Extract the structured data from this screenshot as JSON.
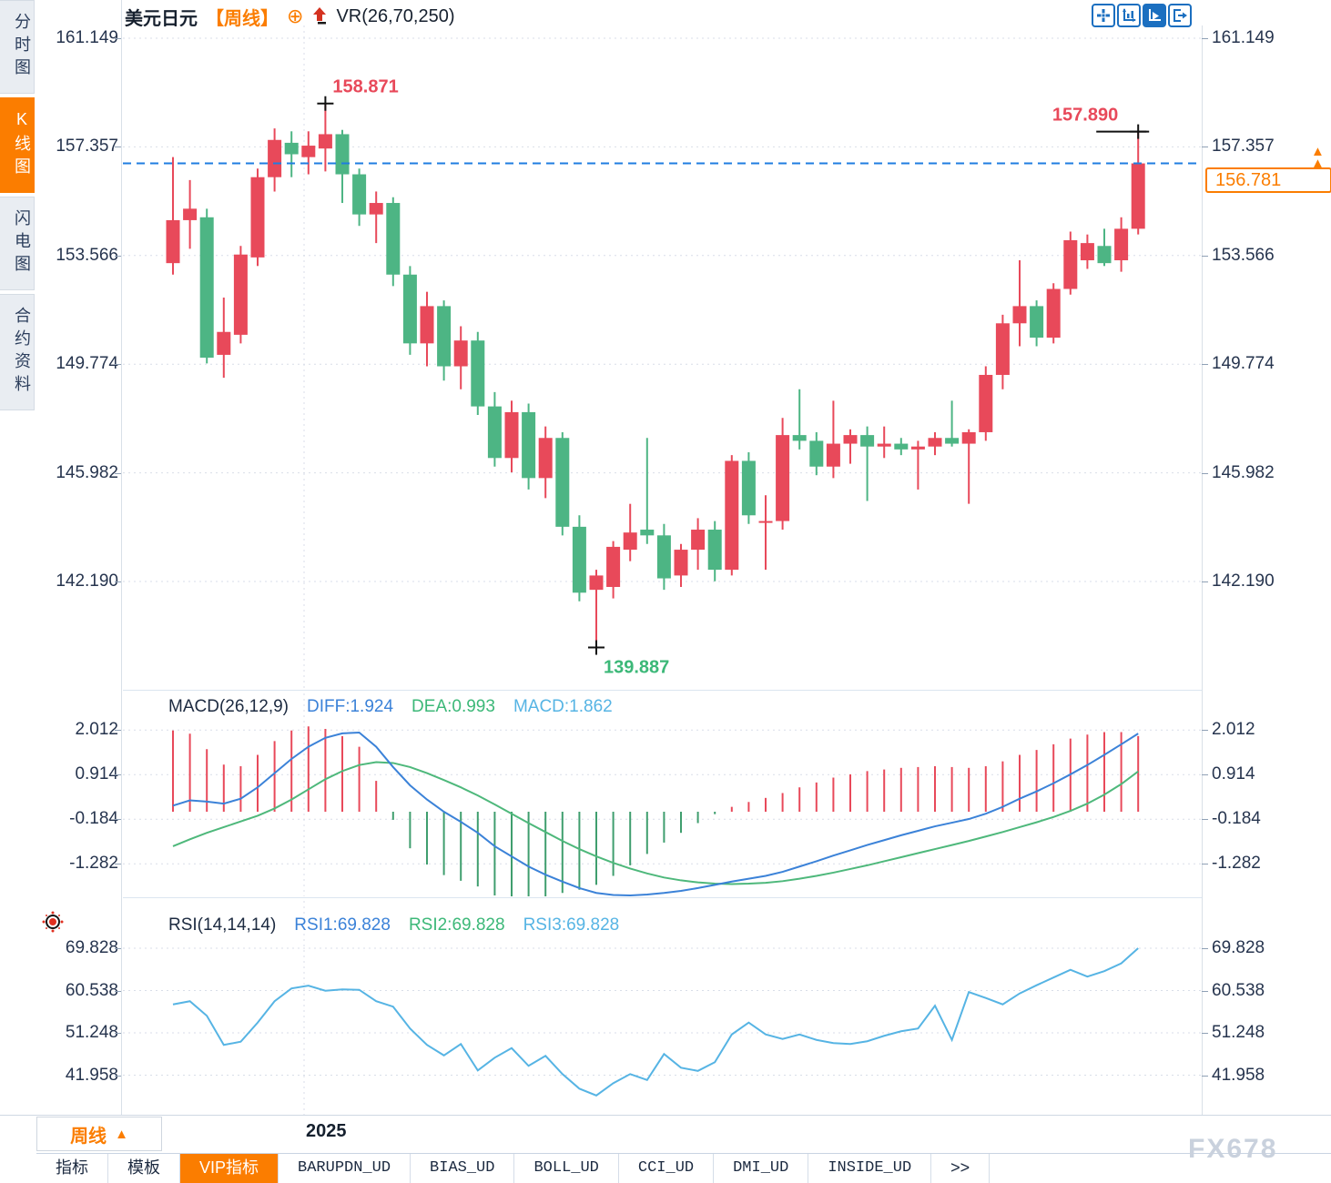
{
  "app": {
    "watermark": "FX678"
  },
  "sidebar": {
    "tabs": [
      {
        "label": "分时图",
        "active": false
      },
      {
        "label": "K线图",
        "active": true
      },
      {
        "label": "闪电图",
        "active": false
      },
      {
        "label": "合约资料",
        "active": false
      }
    ]
  },
  "header": {
    "symbol": "美元日元",
    "period": "【周线】",
    "circle_plus": "⊕",
    "overlay_indicator": "VR(26,70,250)"
  },
  "toolbar": {
    "icons": [
      "move-cross",
      "axis-scale",
      "pointer-chart-active",
      "exit-panel"
    ]
  },
  "current_price": {
    "value": "156.781",
    "arrow": "▲"
  },
  "period_selector": {
    "label": "周线",
    "arrow": "▲"
  },
  "x_axis": {
    "year": "2025"
  },
  "macd_panel": {
    "title": "MACD(26,12,9)",
    "diff": "DIFF:1.924",
    "dea": "DEA:0.993",
    "macd": "MACD:1.862"
  },
  "rsi_panel": {
    "title": "RSI(14,14,14)",
    "rsi1": "RSI1:69.828",
    "rsi2": "RSI2:69.828",
    "rsi3": "RSI3:69.828"
  },
  "bottom_tabs": [
    {
      "label": "指标",
      "active": false
    },
    {
      "label": "模板",
      "active": false
    },
    {
      "label": "VIP指标",
      "active": true
    },
    {
      "label": "BARUPDN_UD",
      "active": false
    },
    {
      "label": "BIAS_UD",
      "active": false
    },
    {
      "label": "BOLL_UD",
      "active": false
    },
    {
      "label": "CCI_UD",
      "active": false
    },
    {
      "label": "DMI_UD",
      "active": false
    },
    {
      "label": "INSIDE_UD",
      "active": false
    },
    {
      "label": ">>",
      "active": false
    }
  ],
  "colors": {
    "up": "#e8495a",
    "down": "#4db584",
    "accent_orange": "#fb7d00",
    "diff_line": "#3b82d8",
    "dea_line": "#4eb87b",
    "rsi_line": "#56b4e4",
    "dashed_price_line": "#1f7de0",
    "icon_blue": "#1b6fc0",
    "marker_cross": "#111111"
  },
  "chart_data": [
    {
      "type": "candlestick",
      "title": "美元日元 周线",
      "y_axis_ticks": [
        "161.149",
        "157.357",
        "153.566",
        "149.774",
        "145.982",
        "142.190"
      ],
      "current_price": 156.781,
      "x_year_label": "2025",
      "annotations": [
        {
          "text": "158.871",
          "candle_index": 10,
          "anchor": "high",
          "color": "#e8495a"
        },
        {
          "text": "139.887",
          "candle_index": 26,
          "anchor": "low",
          "color": "#3cb878"
        },
        {
          "text": "157.890",
          "candle_index": 58,
          "anchor": "high",
          "color": "#e8495a",
          "tail": true
        }
      ],
      "ohlc_note": "weekly [open, high, low, close]; red = close>=open, green = close<open",
      "ohlc": [
        [
          153.3,
          157.0,
          152.9,
          154.8
        ],
        [
          154.8,
          156.2,
          153.8,
          155.2
        ],
        [
          154.9,
          155.2,
          149.8,
          150.0
        ],
        [
          150.1,
          152.1,
          149.3,
          150.9
        ],
        [
          150.8,
          153.9,
          150.5,
          153.6
        ],
        [
          153.5,
          156.6,
          153.2,
          156.3
        ],
        [
          156.3,
          158.0,
          155.8,
          157.6
        ],
        [
          157.5,
          157.9,
          156.3,
          157.1
        ],
        [
          157.0,
          157.9,
          156.4,
          157.4
        ],
        [
          157.3,
          158.871,
          156.5,
          157.8
        ],
        [
          157.8,
          157.95,
          155.4,
          156.4
        ],
        [
          156.4,
          156.6,
          154.6,
          155.0
        ],
        [
          155.0,
          155.8,
          154.0,
          155.4
        ],
        [
          155.4,
          155.6,
          152.5,
          152.9
        ],
        [
          152.9,
          153.2,
          150.1,
          150.5
        ],
        [
          150.5,
          152.3,
          149.7,
          151.8
        ],
        [
          151.8,
          152.0,
          149.2,
          149.7
        ],
        [
          149.7,
          151.1,
          148.9,
          150.6
        ],
        [
          150.6,
          150.9,
          148.0,
          148.3
        ],
        [
          148.3,
          148.8,
          146.2,
          146.5
        ],
        [
          146.5,
          148.5,
          146.0,
          148.1
        ],
        [
          148.1,
          148.4,
          145.4,
          145.8
        ],
        [
          145.8,
          147.6,
          145.1,
          147.2
        ],
        [
          147.2,
          147.4,
          143.8,
          144.1
        ],
        [
          144.1,
          144.5,
          141.5,
          141.8
        ],
        [
          141.9,
          142.6,
          139.887,
          142.4
        ],
        [
          142.0,
          143.6,
          141.6,
          143.4
        ],
        [
          143.3,
          144.9,
          142.9,
          143.9
        ],
        [
          144.0,
          147.2,
          143.5,
          143.8
        ],
        [
          143.8,
          144.2,
          141.9,
          142.3
        ],
        [
          142.4,
          143.5,
          142.0,
          143.3
        ],
        [
          143.3,
          144.4,
          142.6,
          144.0
        ],
        [
          144.0,
          144.3,
          142.2,
          142.6
        ],
        [
          142.6,
          146.6,
          142.4,
          146.4
        ],
        [
          146.4,
          146.7,
          144.2,
          144.5
        ],
        [
          144.3,
          145.2,
          142.6,
          144.3
        ],
        [
          144.3,
          147.9,
          144.0,
          147.3
        ],
        [
          147.3,
          148.9,
          146.8,
          147.1
        ],
        [
          147.1,
          147.4,
          145.9,
          146.2
        ],
        [
          146.2,
          148.5,
          145.8,
          147.0
        ],
        [
          147.0,
          147.5,
          146.3,
          147.3
        ],
        [
          147.3,
          147.6,
          145.0,
          146.9
        ],
        [
          146.9,
          147.6,
          146.5,
          147.0
        ],
        [
          147.0,
          147.2,
          146.6,
          146.8
        ],
        [
          146.8,
          147.1,
          145.4,
          146.9
        ],
        [
          146.9,
          147.4,
          146.6,
          147.2
        ],
        [
          147.2,
          148.5,
          146.9,
          147.0
        ],
        [
          147.0,
          147.5,
          144.9,
          147.4
        ],
        [
          147.4,
          149.7,
          147.1,
          149.4
        ],
        [
          149.4,
          151.5,
          148.9,
          151.2
        ],
        [
          151.2,
          153.4,
          150.4,
          151.8
        ],
        [
          151.8,
          152.0,
          150.4,
          150.7
        ],
        [
          150.7,
          152.6,
          150.5,
          152.4
        ],
        [
          152.4,
          154.4,
          152.2,
          154.1
        ],
        [
          153.4,
          154.3,
          153.1,
          154.0
        ],
        [
          153.9,
          154.5,
          153.2,
          153.3
        ],
        [
          153.4,
          154.9,
          153.0,
          154.5
        ],
        [
          154.5,
          157.89,
          154.3,
          156.781
        ]
      ]
    },
    {
      "type": "bar+line",
      "title": "MACD(26,12,9)",
      "y_axis_ticks": [
        "2.012",
        "0.914",
        "-0.184",
        "-1.282"
      ],
      "histogram_rule": "2*(DIFF-DEA)",
      "diff": [
        0.15,
        0.28,
        0.25,
        0.2,
        0.32,
        0.6,
        0.95,
        1.3,
        1.6,
        1.82,
        1.93,
        1.95,
        1.6,
        1.1,
        0.65,
        0.3,
        0.0,
        -0.25,
        -0.52,
        -0.85,
        -1.1,
        -1.35,
        -1.55,
        -1.72,
        -1.88,
        -2.0,
        -2.05,
        -2.06,
        -2.04,
        -2.0,
        -1.95,
        -1.88,
        -1.8,
        -1.72,
        -1.65,
        -1.58,
        -1.48,
        -1.35,
        -1.22,
        -1.08,
        -0.95,
        -0.82,
        -0.7,
        -0.58,
        -0.47,
        -0.36,
        -0.27,
        -0.18,
        -0.05,
        0.12,
        0.32,
        0.5,
        0.7,
        0.92,
        1.15,
        1.4,
        1.66,
        1.924
      ],
      "dea": [
        -0.85,
        -0.68,
        -0.52,
        -0.38,
        -0.24,
        -0.1,
        0.08,
        0.3,
        0.55,
        0.8,
        1.0,
        1.15,
        1.22,
        1.2,
        1.1,
        0.95,
        0.78,
        0.6,
        0.4,
        0.18,
        -0.05,
        -0.28,
        -0.5,
        -0.72,
        -0.92,
        -1.1,
        -1.26,
        -1.4,
        -1.52,
        -1.62,
        -1.69,
        -1.74,
        -1.77,
        -1.78,
        -1.77,
        -1.75,
        -1.71,
        -1.65,
        -1.58,
        -1.5,
        -1.41,
        -1.32,
        -1.22,
        -1.12,
        -1.02,
        -0.92,
        -0.82,
        -0.72,
        -0.61,
        -0.5,
        -0.38,
        -0.26,
        -0.13,
        0.02,
        0.2,
        0.42,
        0.68,
        0.993
      ]
    },
    {
      "type": "line",
      "title": "RSI(14,14,14)",
      "y_axis_ticks": [
        "69.828",
        "60.538",
        "51.248",
        "41.958"
      ],
      "rsi": [
        57.5,
        58.2,
        55.0,
        48.6,
        49.3,
        53.5,
        58.2,
        61.0,
        61.6,
        60.5,
        60.8,
        60.7,
        58.2,
        57.0,
        52.2,
        48.6,
        46.3,
        48.8,
        43.0,
        45.8,
        47.9,
        44.0,
        46.2,
        42.2,
        39.0,
        37.5,
        40.2,
        42.2,
        40.9,
        46.6,
        43.6,
        42.9,
        44.8,
        50.9,
        53.5,
        50.9,
        49.9,
        50.9,
        49.7,
        49.0,
        48.8,
        49.4,
        50.6,
        51.6,
        52.2,
        57.2,
        49.7,
        60.2,
        58.9,
        57.5,
        59.9,
        61.7,
        63.4,
        65.1,
        63.6,
        64.8,
        66.5,
        69.828
      ]
    }
  ]
}
